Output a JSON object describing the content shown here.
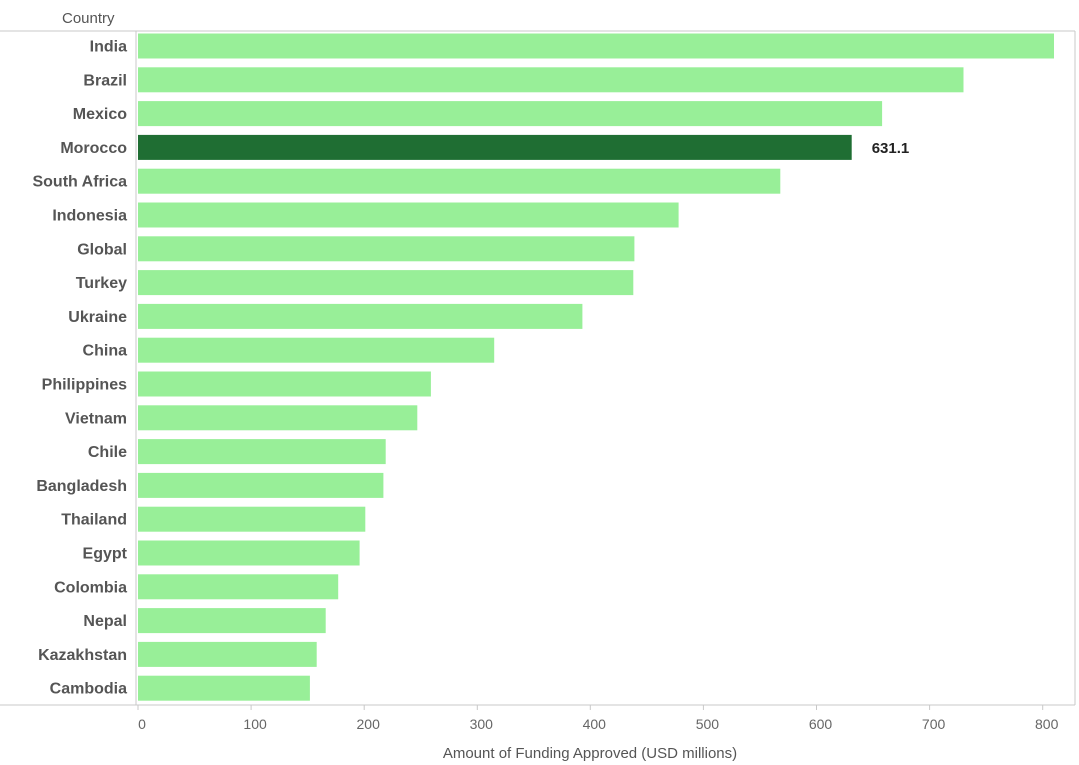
{
  "chart_data": {
    "type": "bar",
    "orientation": "horizontal",
    "row_header": "Country",
    "xlabel": "Amount of Funding Approved (USD millions)",
    "xlim": [
      0,
      810
    ],
    "xticks": [
      0,
      100,
      200,
      300,
      400,
      500,
      600,
      700,
      800
    ],
    "categories": [
      "India",
      "Brazil",
      "Mexico",
      "Morocco",
      "South Africa",
      "Indonesia",
      "Global",
      "Turkey",
      "Ukraine",
      "China",
      "Philippines",
      "Vietnam",
      "Chile",
      "Bangladesh",
      "Thailand",
      "Egypt",
      "Colombia",
      "Nepal",
      "Kazakhstan",
      "Cambodia"
    ],
    "values": [
      810,
      730,
      658,
      631.1,
      568,
      478,
      439,
      438,
      393,
      315,
      259,
      247,
      219,
      217,
      201,
      196,
      177,
      166,
      158,
      152
    ],
    "highlight": "Morocco",
    "data_labels": [
      {
        "category": "Morocco",
        "text": "631.1"
      }
    ],
    "colors": {
      "bar": "#98ef98",
      "highlight": "#1f6e33",
      "axis": "#c8c8c8"
    }
  }
}
